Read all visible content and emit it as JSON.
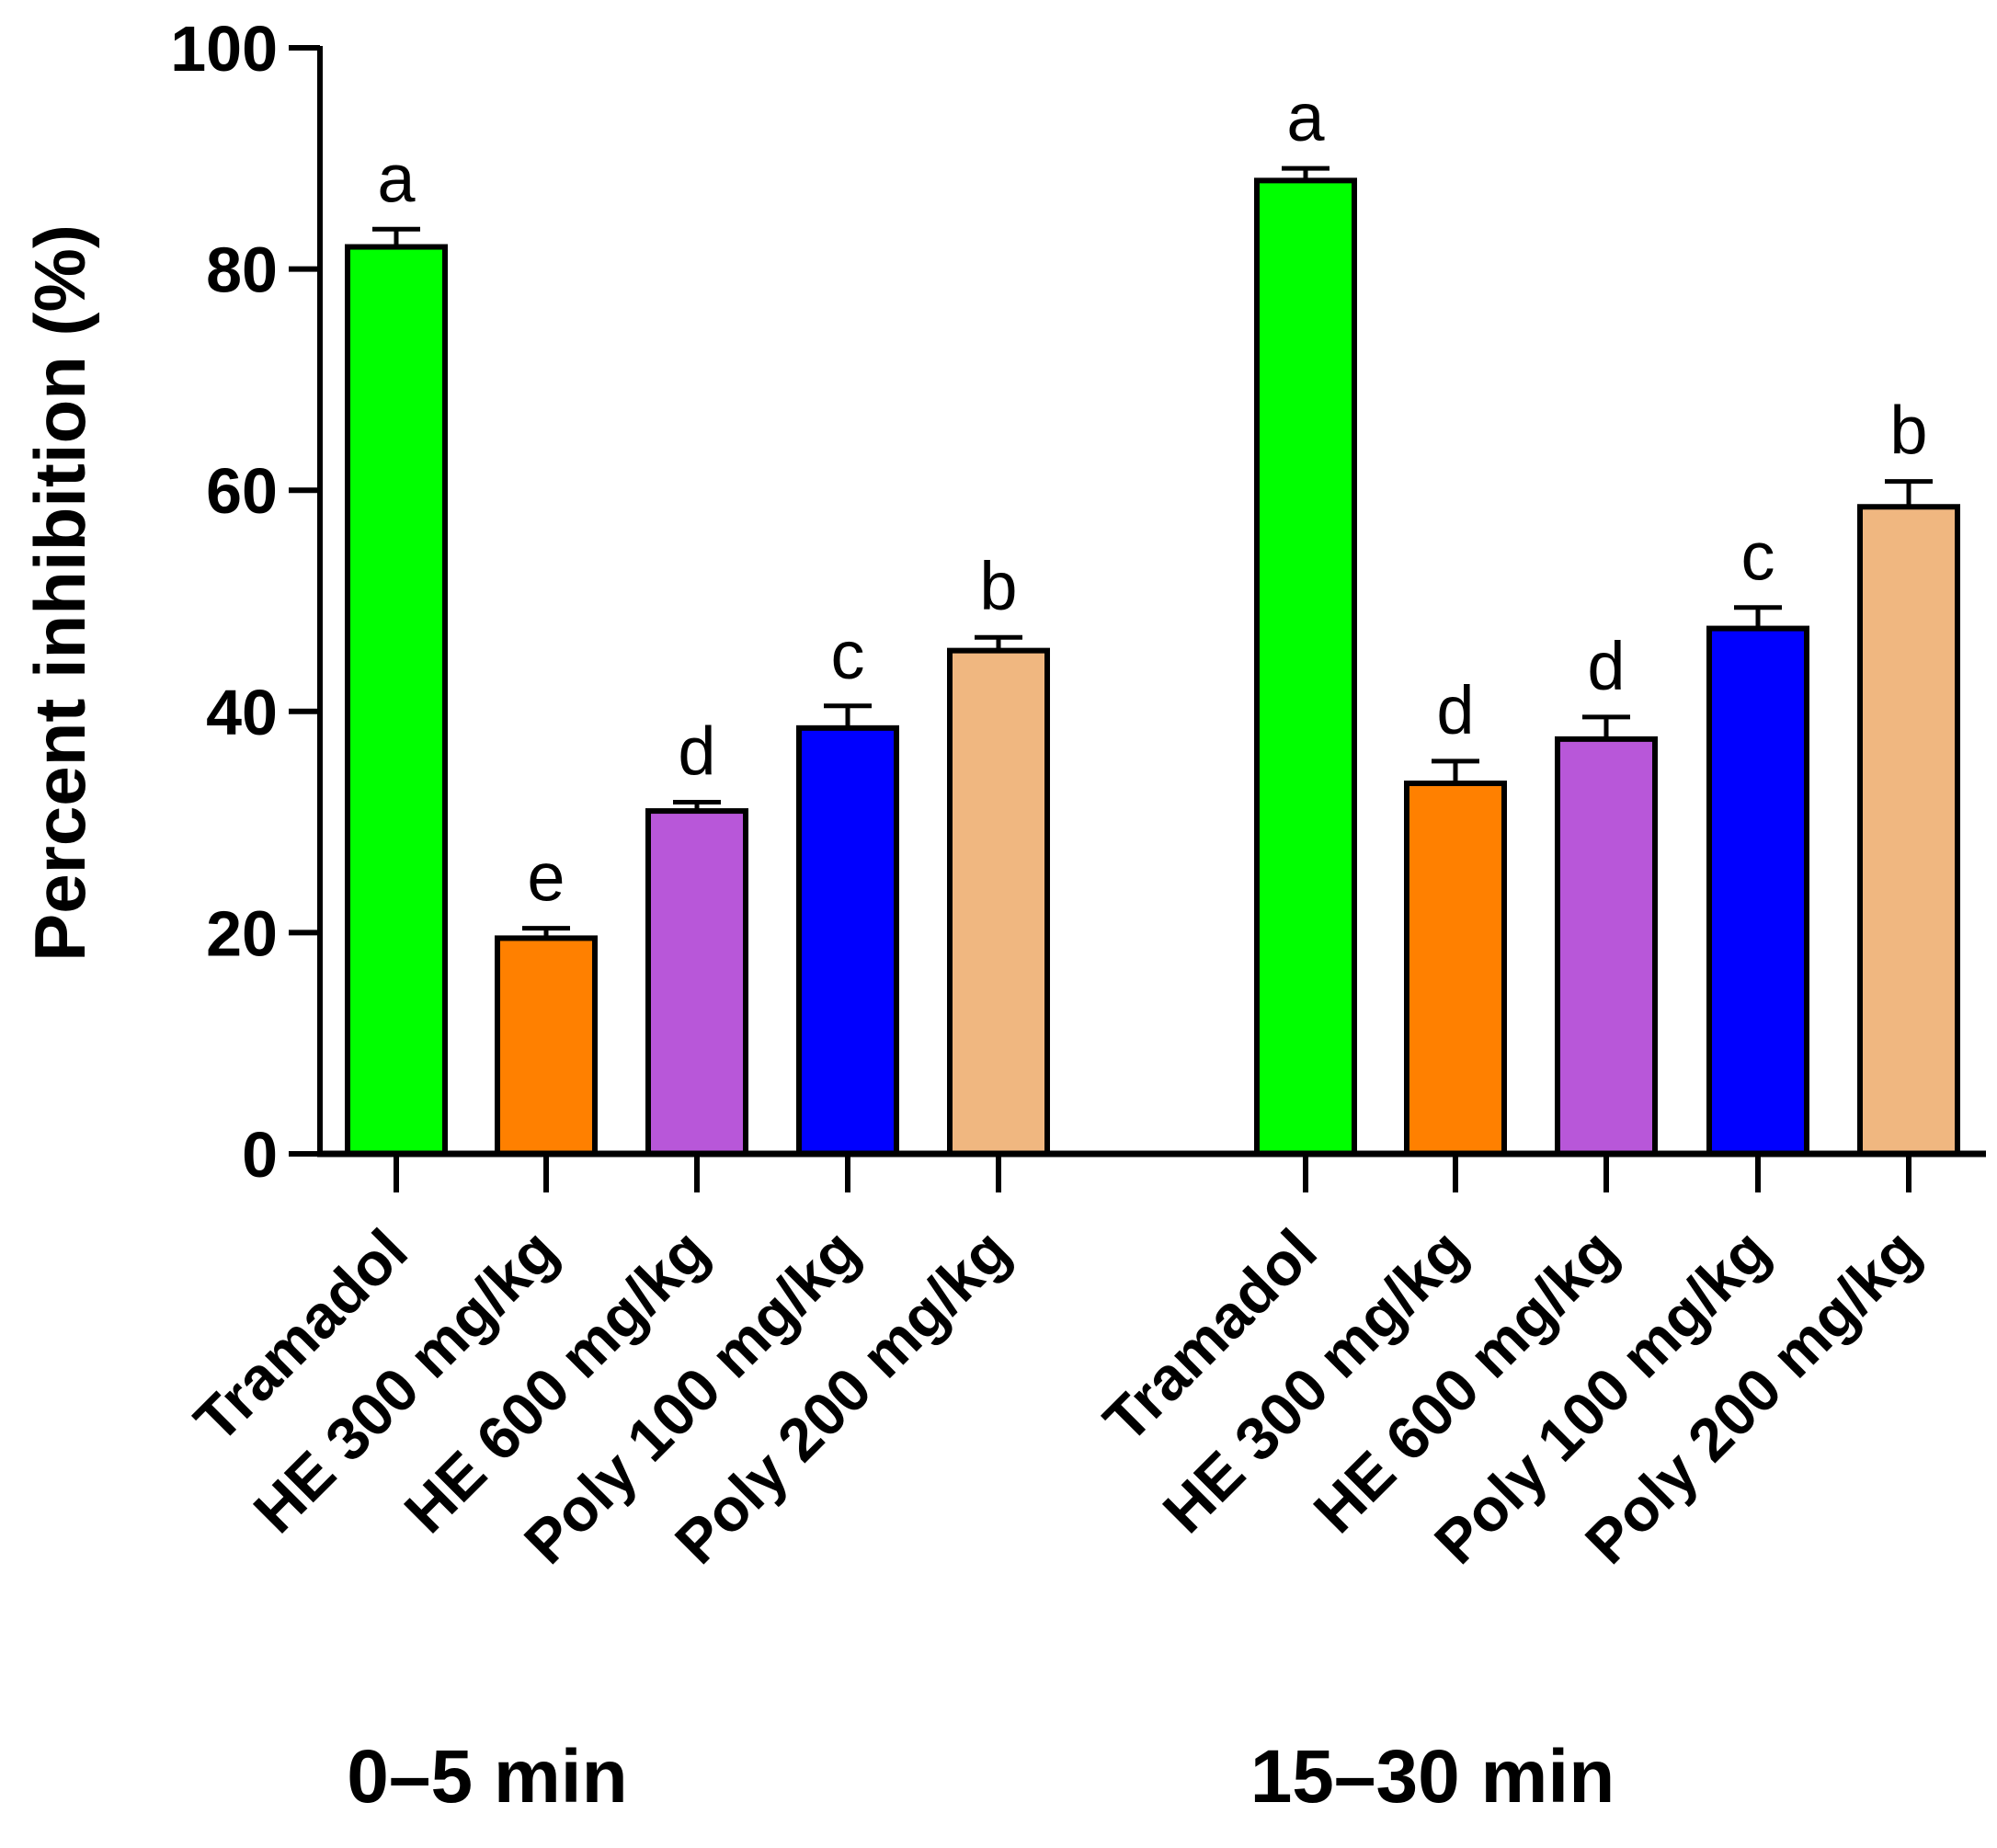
{
  "chart_data": {
    "type": "bar",
    "title": "",
    "xlabel": "",
    "ylabel": "Percent inhibition (%)",
    "ylim": [
      0,
      100
    ],
    "yticks": [
      0,
      20,
      40,
      60,
      80,
      100
    ],
    "ytick_labels": [
      "0",
      "20",
      "40",
      "60",
      "80",
      "100"
    ],
    "grid": false,
    "legend": "none",
    "groups": [
      {
        "label": "0–5 min",
        "bars": [
          {
            "category": "Tramadol",
            "value": 82,
            "error": 1.6,
            "letter": "a",
            "color": "#00ff00"
          },
          {
            "category": "HE 300 mg/kg",
            "value": 19.5,
            "error": 0.9,
            "letter": "e",
            "color": "#ff8000"
          },
          {
            "category": "HE 600 mg/kg",
            "value": 31,
            "error": 0.8,
            "letter": "d",
            "color": "#b857d9"
          },
          {
            "category": "Poly 100 mg/kg",
            "value": 38.5,
            "error": 2.0,
            "letter": "c",
            "color": "#0000ff"
          },
          {
            "category": "Poly 200 mg/kg",
            "value": 45.5,
            "error": 1.2,
            "letter": "b",
            "color": "#f0b780"
          }
        ]
      },
      {
        "label": "15–30 min",
        "bars": [
          {
            "category": "Tramadol",
            "value": 88,
            "error": 1.1,
            "letter": "a",
            "color": "#00ff00"
          },
          {
            "category": "HE 300 mg/kg",
            "value": 33.5,
            "error": 2.0,
            "letter": "d",
            "color": "#ff8000"
          },
          {
            "category": "HE 600 mg/kg",
            "value": 37.5,
            "error": 2.0,
            "letter": "d",
            "color": "#b857d9"
          },
          {
            "category": "Poly 100 mg/kg",
            "value": 47.5,
            "error": 1.9,
            "letter": "c",
            "color": "#0000ff"
          },
          {
            "category": "Poly 200 mg/kg",
            "value": 58.5,
            "error": 2.3,
            "letter": "b",
            "color": "#f0b780"
          }
        ]
      }
    ]
  }
}
